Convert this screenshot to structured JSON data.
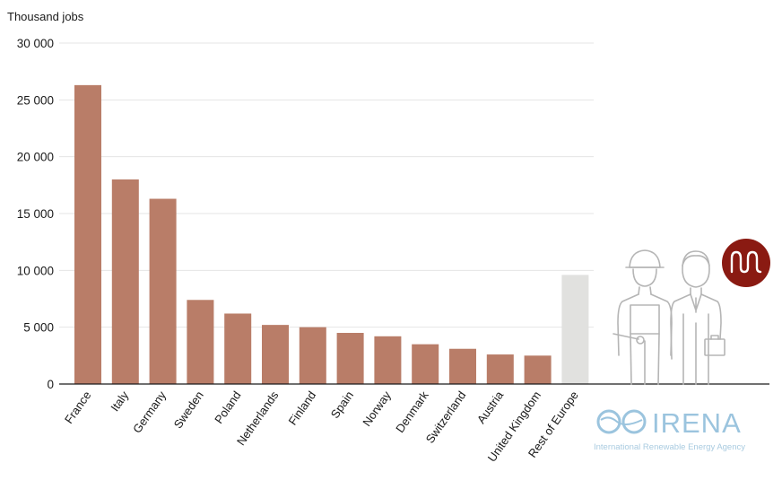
{
  "chart_data": {
    "type": "bar",
    "ylabel": "Thousand jobs",
    "xlabel": "",
    "ylim": [
      0,
      30000
    ],
    "yticks": [
      0,
      5000,
      10000,
      15000,
      20000,
      25000,
      30000
    ],
    "ytick_labels": [
      "0",
      "5 000",
      "10 000",
      "15 000",
      "20 000",
      "25 000",
      "30 000"
    ],
    "categories": [
      "France",
      "Italy",
      "Germany",
      "Sweden",
      "Poland",
      "Netherlands",
      "Finland",
      "Spain",
      "Norway",
      "Denmark",
      "Switzerland",
      "Austria",
      "United Kingdom",
      "Rest of Europe"
    ],
    "values": [
      26300,
      18000,
      16300,
      7400,
      6200,
      5200,
      5000,
      4500,
      4200,
      3500,
      3100,
      2600,
      2500,
      9600
    ],
    "bar_colors": [
      "#b97d68",
      "#b97d68",
      "#b97d68",
      "#b97d68",
      "#b97d68",
      "#b97d68",
      "#b97d68",
      "#b97d68",
      "#b97d68",
      "#b97d68",
      "#b97d68",
      "#b97d68",
      "#b97d68",
      "#e1e1df"
    ],
    "grid": true,
    "legend": "none"
  },
  "branding": {
    "logo_word": "IRENA",
    "logo_subtitle": "International Renewable Energy Agency",
    "icon": "workers-icon",
    "badge_icon": "hydropower-icon"
  },
  "colors": {
    "bar": "#b97d68",
    "rest_bar": "#e1e1df",
    "badge": "#8a1a12",
    "logo": "#9bc4de"
  }
}
